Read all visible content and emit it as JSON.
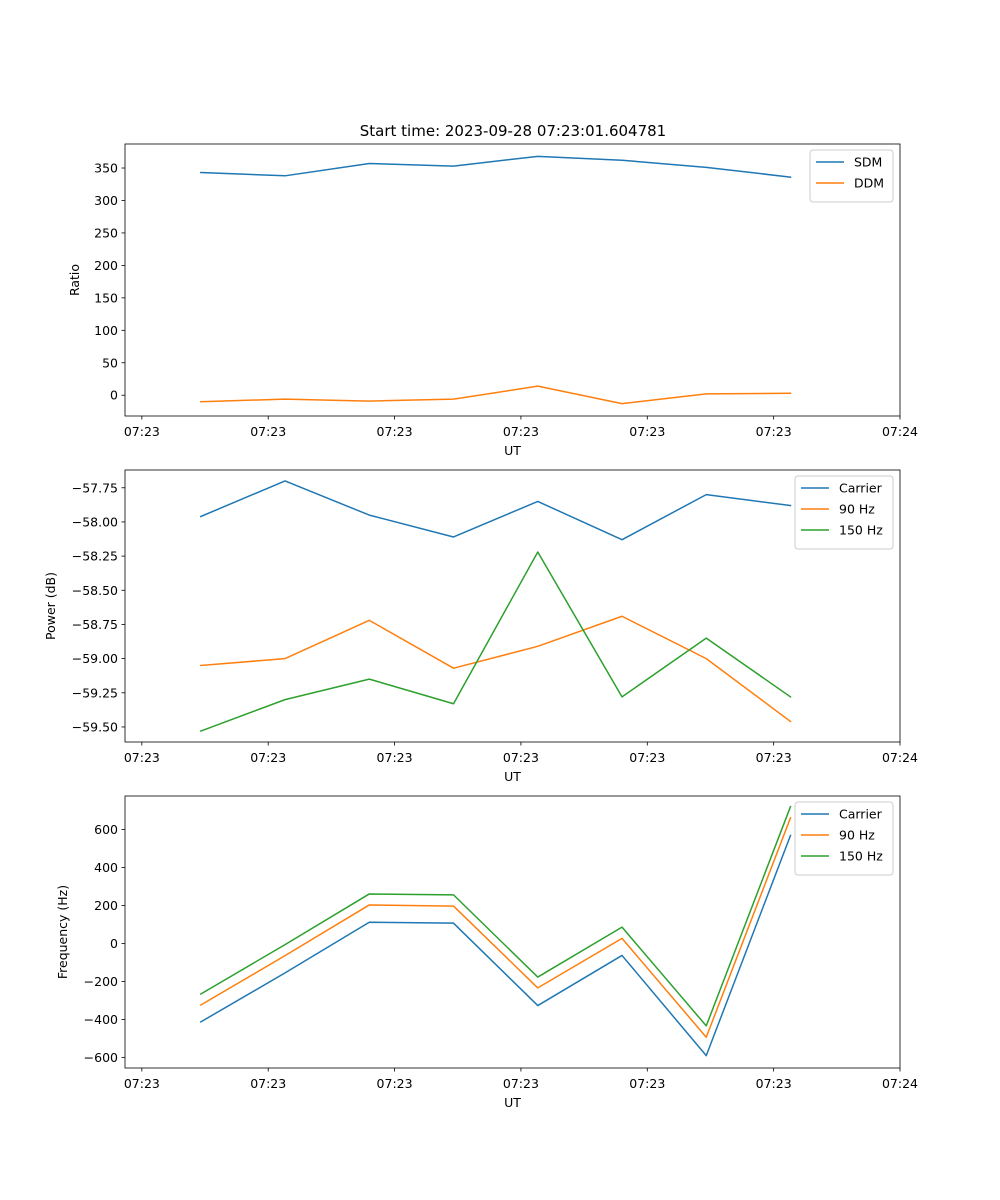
{
  "figure_title": "Start time: 2023-09-28 07:23:01.604781",
  "chart_data": [
    {
      "type": "line",
      "xlabel": "UT",
      "ylabel": "Ratio",
      "xlim": [
        -0.9,
        8.3
      ],
      "ylim": [
        -32,
        387
      ],
      "x": [
        0,
        1,
        2,
        3,
        4,
        5,
        6,
        7
      ],
      "xticks": [
        -0.7,
        0.8,
        2.3,
        3.8,
        5.3,
        6.8,
        8.3
      ],
      "xtick_labels": [
        "07:23",
        "07:23",
        "07:23",
        "07:23",
        "07:23",
        "07:23",
        "07:24"
      ],
      "yticks": [
        0,
        50,
        100,
        150,
        200,
        250,
        300,
        350
      ],
      "ytick_labels": [
        "0",
        "50",
        "100",
        "150",
        "200",
        "250",
        "300",
        "350"
      ],
      "legend": "top-right",
      "series": [
        {
          "name": "SDM",
          "color": "#1f77b4",
          "values": [
            343,
            338,
            357,
            353,
            368,
            362,
            351,
            336
          ]
        },
        {
          "name": "DDM",
          "color": "#ff7f0e",
          "values": [
            -10,
            -6,
            -9,
            -6,
            14,
            -13,
            2,
            3
          ]
        }
      ]
    },
    {
      "type": "line",
      "xlabel": "UT",
      "ylabel": "Power (dB)",
      "xlim": [
        -0.9,
        8.3
      ],
      "ylim": [
        -59.61,
        -57.62
      ],
      "x": [
        0,
        1,
        2,
        3,
        4,
        5,
        6,
        7
      ],
      "xticks": [
        -0.7,
        0.8,
        2.3,
        3.8,
        5.3,
        6.8,
        8.3
      ],
      "xtick_labels": [
        "07:23",
        "07:23",
        "07:23",
        "07:23",
        "07:23",
        "07:23",
        "07:24"
      ],
      "yticks": [
        -59.5,
        -59.25,
        -59.0,
        -58.75,
        -58.5,
        -58.25,
        -58.0,
        -57.75
      ],
      "ytick_labels": [
        "−59.50",
        "−59.25",
        "−59.00",
        "−58.75",
        "−58.50",
        "−58.25",
        "−58.00",
        "−57.75"
      ],
      "legend": "top-right",
      "series": [
        {
          "name": "Carrier",
          "color": "#1f77b4",
          "values": [
            -57.96,
            -57.7,
            -57.95,
            -58.11,
            -57.85,
            -58.13,
            -57.8,
            -57.88
          ]
        },
        {
          "name": "90 Hz",
          "color": "#ff7f0e",
          "values": [
            -59.05,
            -59.0,
            -58.72,
            -59.07,
            -58.91,
            -58.69,
            -59.0,
            -59.46
          ]
        },
        {
          "name": "150 Hz",
          "color": "#2ca02c",
          "values": [
            -59.53,
            -59.3,
            -59.15,
            -59.33,
            -58.22,
            -59.28,
            -58.85,
            -59.28
          ]
        }
      ]
    },
    {
      "type": "line",
      "xlabel": "UT",
      "ylabel": "Frequency (Hz)",
      "xlim": [
        -0.9,
        8.3
      ],
      "ylim": [
        -656,
        777
      ],
      "x": [
        0,
        1,
        2,
        3,
        4,
        5,
        6,
        7
      ],
      "xticks": [
        -0.7,
        0.8,
        2.3,
        3.8,
        5.3,
        6.8,
        8.3
      ],
      "xtick_labels": [
        "07:23",
        "07:23",
        "07:23",
        "07:23",
        "07:23",
        "07:23",
        "07:24"
      ],
      "yticks": [
        -600,
        -400,
        -200,
        0,
        200,
        400,
        600
      ],
      "ytick_labels": [
        "−600",
        "−400",
        "−200",
        "0",
        "200",
        "400",
        "600"
      ],
      "legend": "top-right",
      "series": [
        {
          "name": "Carrier",
          "color": "#1f77b4",
          "values": [
            -413,
            -155,
            112,
            107,
            -327,
            -63,
            -591,
            569
          ]
        },
        {
          "name": "90 Hz",
          "color": "#ff7f0e",
          "values": [
            -324,
            -64,
            203,
            197,
            -234,
            27,
            -494,
            662
          ]
        },
        {
          "name": "150 Hz",
          "color": "#2ca02c",
          "values": [
            -266,
            -6,
            261,
            256,
            -177,
            86,
            -434,
            721
          ]
        }
      ]
    }
  ]
}
